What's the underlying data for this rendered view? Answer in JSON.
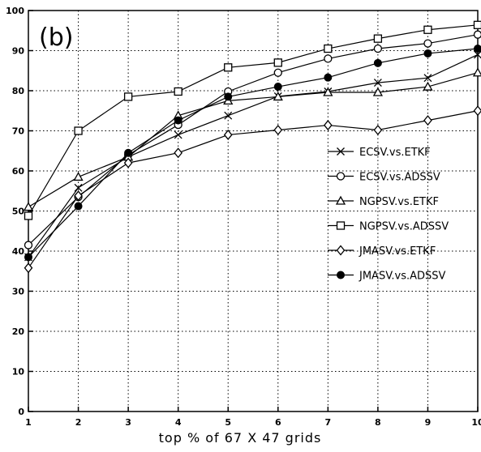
{
  "chart_data": {
    "type": "line",
    "panel_label": "(b)",
    "xlabel": "top % of 67 X 47 grids",
    "ylabel": "",
    "x": [
      1,
      2,
      3,
      4,
      5,
      6,
      7,
      8,
      9,
      10
    ],
    "xlim": [
      1,
      10
    ],
    "ylim": [
      0,
      100
    ],
    "x_ticks": [
      1,
      2,
      3,
      4,
      5,
      6,
      7,
      8,
      9,
      10
    ],
    "y_ticks": [
      0,
      10,
      20,
      30,
      40,
      50,
      60,
      70,
      80,
      90,
      100
    ],
    "grid": true,
    "legend_position": "right",
    "series": [
      {
        "name": "ECSV.vs.ETKF",
        "marker": "x",
        "values": [
          38.5,
          55.8,
          63.5,
          69.0,
          73.8,
          78.6,
          79.8,
          82.0,
          83.2,
          89.0
        ]
      },
      {
        "name": "ECSV.vs.ADSSV",
        "marker": "circle-open",
        "values": [
          41.5,
          53.5,
          64.0,
          71.5,
          79.8,
          84.5,
          88.0,
          90.5,
          91.8,
          94.0
        ]
      },
      {
        "name": "NGPSV.vs.ETKF",
        "marker": "triangle-open",
        "values": [
          51.0,
          58.5,
          63.5,
          73.8,
          77.5,
          78.5,
          79.6,
          79.6,
          81.0,
          84.5
        ]
      },
      {
        "name": "NGPSV.vs.ADSSV",
        "marker": "square-open",
        "values": [
          48.8,
          70.0,
          78.5,
          79.8,
          85.8,
          87.0,
          90.5,
          93.0,
          95.2,
          96.4
        ]
      },
      {
        "name": "JMASV.vs.ETKF",
        "marker": "diamond-open",
        "values": [
          35.8,
          53.8,
          62.0,
          64.5,
          69.0,
          70.2,
          71.4,
          70.2,
          72.6,
          75.0
        ]
      },
      {
        "name": "JMASV.vs.ADSSV",
        "marker": "circle-filled",
        "values": [
          38.5,
          51.2,
          64.5,
          72.6,
          78.5,
          81.0,
          83.3,
          86.9,
          89.3,
          90.5
        ]
      }
    ]
  }
}
